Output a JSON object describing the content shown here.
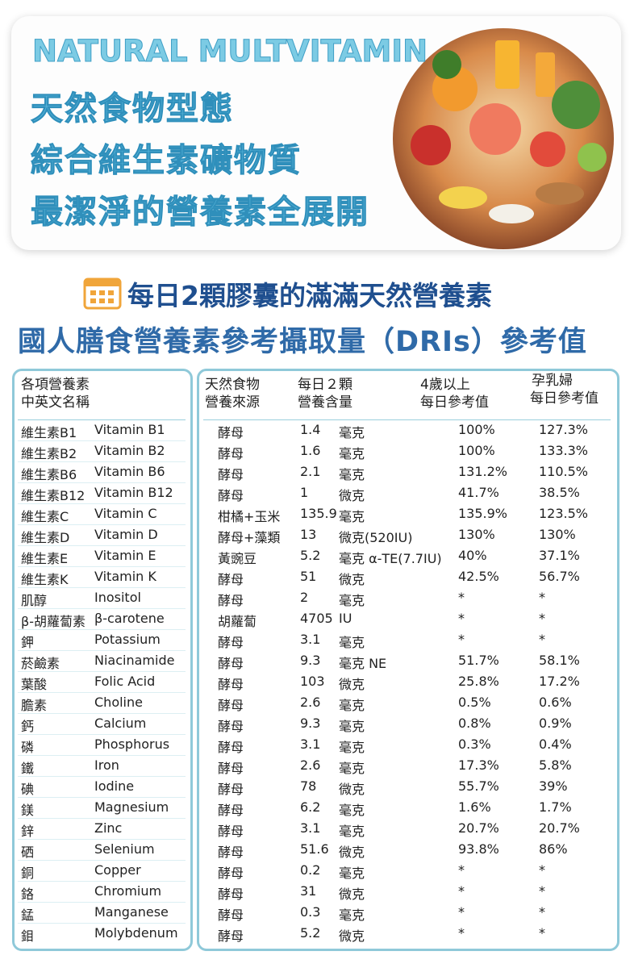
{
  "banner": {
    "title_en": "NATURAL MULTVITAMIN",
    "title_lines": [
      "天然食物型態",
      "綜合維生素礦物質",
      "最潔淨的營養素全展開"
    ]
  },
  "headings": [
    "每日2顆膠囊的滿滿天然營養素",
    "國人膳食營養素參考攝取量（DRIs）參考值"
  ],
  "table": {
    "left_header": [
      "各項營養素",
      "中英文名稱"
    ],
    "right_header": [
      [
        "天然食物",
        "營養來源"
      ],
      [
        "每日２顆",
        "營養含量"
      ],
      [
        "4歲以上",
        "每日參考值"
      ],
      [
        "孕乳婦",
        "每日參考值"
      ]
    ],
    "rows": [
      [
        "維生素B1",
        "Vitamin B1",
        "酵母",
        "1.4",
        "毫克",
        "100%",
        "127.3%"
      ],
      [
        "維生素B2",
        "Vitamin B2",
        "酵母",
        "1.6",
        "毫克",
        "100%",
        "133.3%"
      ],
      [
        "維生素B6",
        "Vitamin B6",
        "酵母",
        "2.1",
        "毫克",
        "131.2%",
        "110.5%"
      ],
      [
        "維生素B12",
        "Vitamin B12",
        "酵母",
        "1",
        "微克",
        "41.7%",
        "38.5%"
      ],
      [
        "維生素C",
        "Vitamin C",
        "柑橘+玉米",
        "135.9",
        "毫克",
        "135.9%",
        "123.5%"
      ],
      [
        "維生素D",
        "Vitamin D",
        "酵母+藻類",
        "13",
        "微克(520IU)",
        "130%",
        "130%"
      ],
      [
        "維生素E",
        "Vitamin E",
        "黃豌豆",
        "5.2",
        "毫克 α-TE(7.7IU)",
        "40%",
        "37.1%"
      ],
      [
        "維生素K",
        "Vitamin K",
        "酵母",
        "51",
        "微克",
        "42.5%",
        "56.7%"
      ],
      [
        "肌醇",
        "Inositol",
        "酵母",
        "2",
        "毫克",
        "*",
        "*"
      ],
      [
        "β-胡蘿蔔素",
        "β-carotene",
        "胡蘿蔔",
        "4705",
        "IU",
        "*",
        "*"
      ],
      [
        "鉀",
        "Potassium",
        "酵母",
        "3.1",
        "毫克",
        "*",
        "*"
      ],
      [
        "菸鹼素",
        "Niacinamide",
        "酵母",
        "9.3",
        "毫克 NE",
        "51.7%",
        "58.1%"
      ],
      [
        "葉酸",
        "Folic Acid",
        "酵母",
        "103",
        "微克",
        "25.8%",
        "17.2%"
      ],
      [
        "膽素",
        "Choline",
        "酵母",
        "2.6",
        "毫克",
        "0.5%",
        "0.6%"
      ],
      [
        "鈣",
        "Calcium",
        "酵母",
        "9.3",
        "毫克",
        "0.8%",
        "0.9%"
      ],
      [
        "磷",
        "Phosphorus",
        "酵母",
        "3.1",
        "毫克",
        "0.3%",
        "0.4%"
      ],
      [
        "鐵",
        "Iron",
        "酵母",
        "2.6",
        "毫克",
        "17.3%",
        "5.8%"
      ],
      [
        "碘",
        "Iodine",
        "酵母",
        "78",
        "微克",
        "55.7%",
        "39%"
      ],
      [
        "鎂",
        "Magnesium",
        "酵母",
        "6.2",
        "毫克",
        "1.6%",
        "1.7%"
      ],
      [
        "鋅",
        "Zinc",
        "酵母",
        "3.1",
        "毫克",
        "20.7%",
        "20.7%"
      ],
      [
        "硒",
        "Selenium",
        "酵母",
        "51.6",
        "微克",
        "93.8%",
        "86%"
      ],
      [
        "銅",
        "Copper",
        "酵母",
        "0.2",
        "毫克",
        "*",
        "*"
      ],
      [
        "鉻",
        "Chromium",
        "酵母",
        "31",
        "微克",
        "*",
        "*"
      ],
      [
        "錳",
        "Manganese",
        "酵母",
        "0.3",
        "毫克",
        "*",
        "*"
      ],
      [
        "鉬",
        "Molybdenum",
        "酵母",
        "5.2",
        "微克",
        "*",
        "*"
      ]
    ]
  }
}
